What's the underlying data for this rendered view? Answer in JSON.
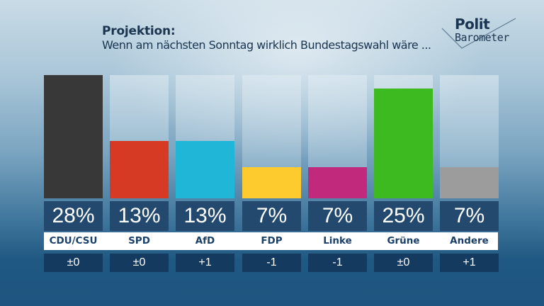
{
  "header": {
    "title": "Projektion:",
    "subtitle": "Wenn am nächsten Sonntag wirklich Bundestagswahl wäre ..."
  },
  "logo": {
    "line1": "Polit",
    "line2": "Barometer",
    "icon": "checkmark-icon"
  },
  "chart_data": {
    "type": "bar",
    "title": "Projektion: Wenn am nächsten Sonntag wirklich Bundestagswahl wäre ...",
    "xlabel": "",
    "ylabel": "",
    "ylim": [
      0,
      28
    ],
    "grid": false,
    "categories": [
      "CDU/CSU",
      "SPD",
      "AfD",
      "FDP",
      "Linke",
      "Grüne",
      "Andere"
    ],
    "values": [
      28,
      13,
      13,
      7,
      7,
      25,
      7
    ],
    "value_labels": [
      "28%",
      "13%",
      "13%",
      "7%",
      "7%",
      "25%",
      "7%"
    ],
    "changes": [
      "±0",
      "±0",
      "+1",
      "-1",
      "-1",
      "±0",
      "+1"
    ],
    "colors": [
      "#383838",
      "#d73a24",
      "#1fb6d8",
      "#fecb2f",
      "#c12a7c",
      "#3dba1f",
      "#9c9c9c"
    ]
  }
}
